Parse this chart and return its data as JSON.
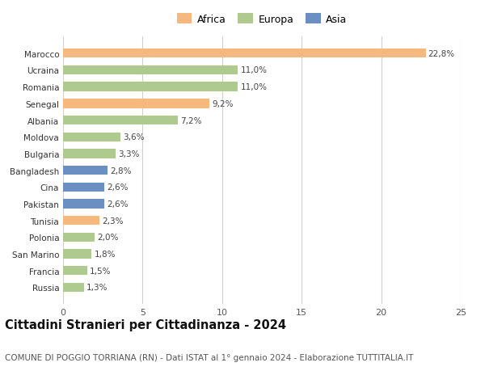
{
  "categories": [
    "Russia",
    "Francia",
    "San Marino",
    "Polonia",
    "Tunisia",
    "Pakistan",
    "Cina",
    "Bangladesh",
    "Bulgaria",
    "Moldova",
    "Albania",
    "Senegal",
    "Romania",
    "Ucraina",
    "Marocco"
  ],
  "values": [
    1.3,
    1.5,
    1.8,
    2.0,
    2.3,
    2.6,
    2.6,
    2.8,
    3.3,
    3.6,
    7.2,
    9.2,
    11.0,
    11.0,
    22.8
  ],
  "continents": [
    "Europa",
    "Europa",
    "Europa",
    "Europa",
    "Africa",
    "Asia",
    "Asia",
    "Asia",
    "Europa",
    "Europa",
    "Europa",
    "Africa",
    "Europa",
    "Europa",
    "Africa"
  ],
  "labels": [
    "1,3%",
    "1,5%",
    "1,8%",
    "2,0%",
    "2,3%",
    "2,6%",
    "2,6%",
    "2,8%",
    "3,3%",
    "3,6%",
    "7,2%",
    "9,2%",
    "11,0%",
    "11,0%",
    "22,8%"
  ],
  "colors": {
    "Africa": "#F5B97F",
    "Europa": "#AECA8E",
    "Asia": "#6B8FC2"
  },
  "xlim": [
    0,
    25
  ],
  "xticks": [
    0,
    5,
    10,
    15,
    20,
    25
  ],
  "title": "Cittadini Stranieri per Cittadinanza - 2024",
  "subtitle": "COMUNE DI POGGIO TORRIANA (RN) - Dati ISTAT al 1° gennaio 2024 - Elaborazione TUTTITALIA.IT",
  "background_color": "#ffffff",
  "grid_color": "#d0d0d0",
  "bar_height": 0.55,
  "label_fontsize": 7.5,
  "title_fontsize": 10.5,
  "subtitle_fontsize": 7.5,
  "ytick_fontsize": 7.5,
  "xtick_fontsize": 8,
  "legend_fontsize": 9
}
